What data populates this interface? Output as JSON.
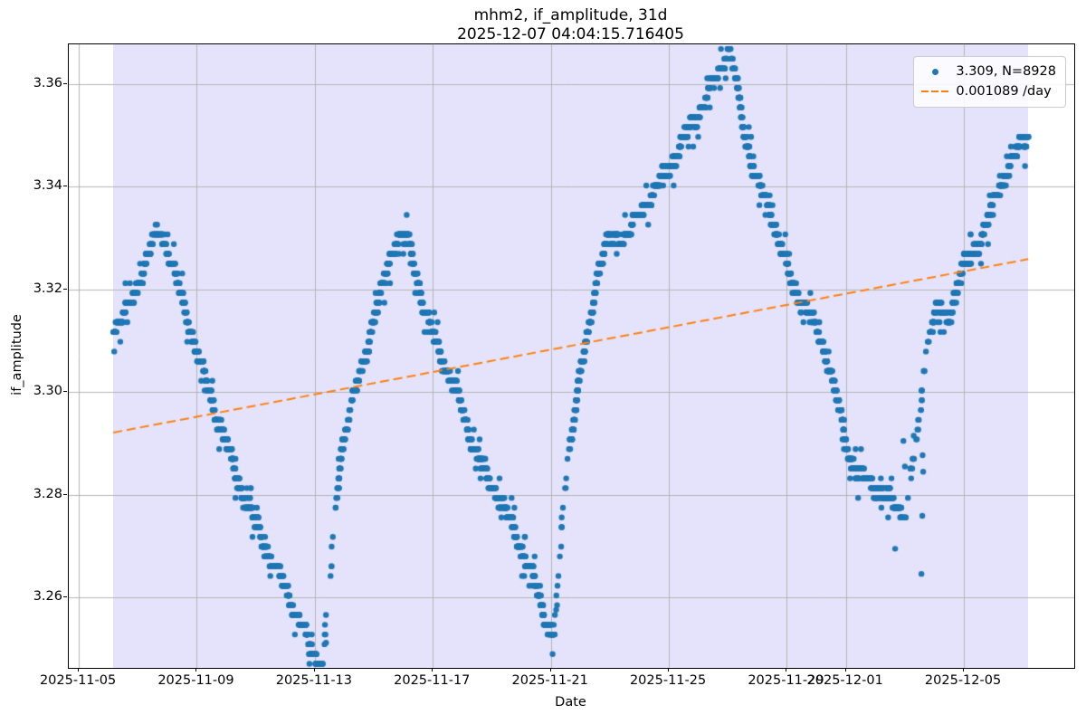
{
  "chart_data": {
    "type": "scatter",
    "title": "mhm2, if_amplitude, 31d",
    "subtitle": "2025-12-07 04:04:15.716405",
    "xlabel": "Date",
    "ylabel": "if_amplitude",
    "legend": {
      "scatter_label": "3.309, N=8928",
      "trend_label": "0.001089 /day",
      "position": "upper right"
    },
    "series_name": "if_amplitude",
    "n_points": 8928,
    "mean_value": 3.309,
    "trend": {
      "slope_per_day": 0.001089,
      "mid_day": 16.675,
      "mid_value": 3.309
    },
    "x_axis": {
      "unit": "days since 2025-11-05 00:00",
      "xlim_days": [
        -0.34,
        33.74
      ],
      "ticks": [
        {
          "day": 0,
          "label": "2025-11-05"
        },
        {
          "day": 4,
          "label": "2025-11-09"
        },
        {
          "day": 8,
          "label": "2025-11-13"
        },
        {
          "day": 12,
          "label": "2025-11-17"
        },
        {
          "day": 16,
          "label": "2025-11-21"
        },
        {
          "day": 20,
          "label": "2025-11-25"
        },
        {
          "day": 24,
          "label": "2025-11-29"
        },
        {
          "day": 26,
          "label": "2025-12-01"
        },
        {
          "day": 30,
          "label": "2025-12-05"
        }
      ]
    },
    "y_axis": {
      "ylim": [
        3.2463,
        3.3677
      ],
      "ticks": [
        {
          "value": 3.26,
          "label": "3.26"
        },
        {
          "value": 3.28,
          "label": "3.28"
        },
        {
          "value": 3.3,
          "label": "3.30"
        },
        {
          "value": 3.32,
          "label": "3.32"
        },
        {
          "value": 3.34,
          "label": "3.34"
        },
        {
          "value": 3.36,
          "label": "3.36"
        }
      ]
    },
    "span_days": [
      1.17,
      32.18
    ],
    "grid": true,
    "colors": {
      "scatter": "#1f77b4",
      "trend": "#ff7f0e",
      "span": "#e4e3fb",
      "grid": "#b4b4b4",
      "spine": "#000000",
      "legend_border": "#cccccc"
    },
    "envelope_day_value": [
      [
        1.17,
        3.3125
      ],
      [
        1.45,
        3.314
      ],
      [
        1.85,
        3.3185
      ],
      [
        2.2,
        3.324
      ],
      [
        2.55,
        3.3295
      ],
      [
        2.75,
        3.3315
      ],
      [
        2.95,
        3.329
      ],
      [
        3.3,
        3.322
      ],
      [
        3.7,
        3.314
      ],
      [
        4.1,
        3.306
      ],
      [
        4.55,
        3.2975
      ],
      [
        5.0,
        3.29
      ],
      [
        5.5,
        3.281
      ],
      [
        6.0,
        3.2745
      ],
      [
        6.5,
        3.2675
      ],
      [
        7.0,
        3.262
      ],
      [
        7.4,
        3.2565
      ],
      [
        7.7,
        3.2525
      ],
      [
        8.0,
        3.2485
      ],
      [
        8.25,
        3.2475
      ],
      [
        8.45,
        3.258
      ],
      [
        8.65,
        3.2735
      ],
      [
        8.9,
        3.289
      ],
      [
        9.2,
        3.2965
      ],
      [
        9.55,
        3.3035
      ],
      [
        9.9,
        3.312
      ],
      [
        10.3,
        3.3205
      ],
      [
        10.6,
        3.3275
      ],
      [
        10.85,
        3.3305
      ],
      [
        11.15,
        3.3295
      ],
      [
        11.45,
        3.323
      ],
      [
        11.7,
        3.3165
      ],
      [
        11.9,
        3.3125
      ],
      [
        12.2,
        3.3085
      ],
      [
        12.5,
        3.304
      ],
      [
        12.8,
        3.3
      ],
      [
        13.1,
        3.2945
      ],
      [
        13.4,
        3.289
      ],
      [
        13.8,
        3.284
      ],
      [
        14.2,
        3.28
      ],
      [
        14.6,
        3.275
      ],
      [
        15.0,
        3.2695
      ],
      [
        15.4,
        3.264
      ],
      [
        15.75,
        3.257
      ],
      [
        16.0,
        3.2535
      ],
      [
        16.1,
        3.2525
      ],
      [
        16.25,
        3.262
      ],
      [
        16.45,
        3.2805
      ],
      [
        16.7,
        3.292
      ],
      [
        17.0,
        3.304
      ],
      [
        17.3,
        3.312
      ],
      [
        17.6,
        3.324
      ],
      [
        17.9,
        3.329
      ],
      [
        18.3,
        3.33
      ],
      [
        18.6,
        3.331
      ],
      [
        19.0,
        3.3345
      ],
      [
        19.5,
        3.339
      ],
      [
        20.0,
        3.3435
      ],
      [
        20.4,
        3.348
      ],
      [
        20.8,
        3.3525
      ],
      [
        21.2,
        3.3565
      ],
      [
        21.6,
        3.361
      ],
      [
        21.9,
        3.3655
      ],
      [
        22.05,
        3.3665
      ],
      [
        22.25,
        3.3615
      ],
      [
        22.5,
        3.352
      ],
      [
        22.8,
        3.345
      ],
      [
        23.1,
        3.3395
      ],
      [
        23.45,
        3.335
      ],
      [
        23.8,
        3.3285
      ],
      [
        24.2,
        3.3205
      ],
      [
        24.55,
        3.3175
      ],
      [
        24.9,
        3.3135
      ],
      [
        25.2,
        3.3095
      ],
      [
        25.5,
        3.3035
      ],
      [
        25.8,
        3.296
      ],
      [
        26.1,
        3.2875
      ],
      [
        26.5,
        3.2835
      ],
      [
        27.0,
        3.2815
      ],
      [
        27.6,
        3.2785
      ],
      [
        28.05,
        3.2765
      ],
      [
        28.15,
        3.2825
      ],
      [
        28.4,
        3.2895
      ],
      [
        28.65,
        3.305
      ],
      [
        28.85,
        3.3125
      ],
      [
        29.15,
        3.3165
      ],
      [
        29.45,
        3.314
      ],
      [
        29.7,
        3.319
      ],
      [
        29.9,
        3.3235
      ],
      [
        30.3,
        3.327
      ],
      [
        30.7,
        3.3315
      ],
      [
        31.1,
        3.3385
      ],
      [
        31.5,
        3.3435
      ],
      [
        31.9,
        3.348
      ],
      [
        32.18,
        3.3505
      ]
    ],
    "outliers_day_value": [
      [
        27.67,
        3.2695
      ],
      [
        28.56,
        3.2646
      ],
      [
        28.59,
        3.2759
      ],
      [
        27.95,
        3.2905
      ],
      [
        28.0,
        3.2855
      ],
      [
        28.6,
        3.2877
      ],
      [
        28.62,
        3.2845
      ],
      [
        28.3,
        3.2915
      ],
      [
        16.18,
        3.2576
      ],
      [
        8.38,
        3.2512
      ]
    ],
    "sparse_intervals": [
      [
        8.25,
        8.8,
        0.13
      ],
      [
        16.12,
        16.65,
        0.13
      ],
      [
        27.9,
        28.85,
        0.1
      ],
      [
        2.35,
        3.05,
        0.55
      ],
      [
        9.0,
        9.6,
        0.4
      ],
      [
        21.0,
        22.3,
        0.55
      ]
    ],
    "render": {
      "dt_days": 0.00347,
      "quantum": 0.0019,
      "marker_radius": 3.2,
      "seed": 42
    }
  }
}
